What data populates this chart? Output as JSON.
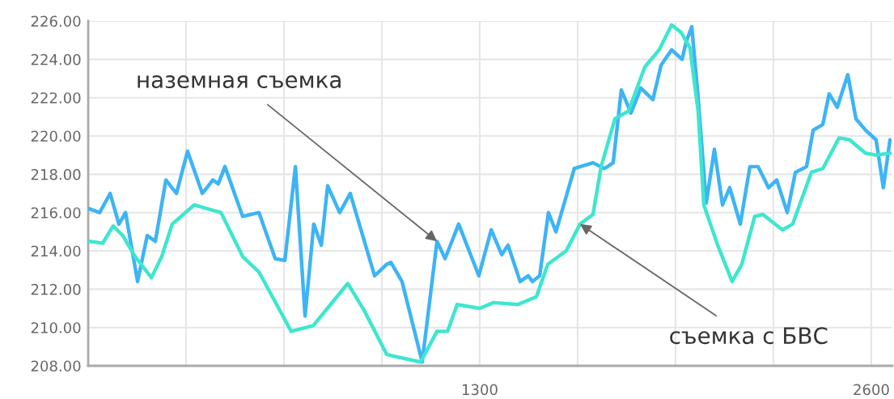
{
  "chart_data": {
    "type": "line",
    "xlim": [
      0,
      2670
    ],
    "ylim": [
      208,
      226
    ],
    "xticks": [
      {
        "value": 325,
        "label": null
      },
      {
        "value": 650,
        "label": null
      },
      {
        "value": 975,
        "label": null
      },
      1300,
      {
        "value": 1625,
        "label": null
      },
      {
        "value": 1950,
        "label": null
      },
      {
        "value": 2275,
        "label": null
      },
      2600
    ],
    "yticks": [
      {
        "value": 208,
        "label": "208.00"
      },
      {
        "value": 210,
        "label": "210.00"
      },
      {
        "value": 212,
        "label": "212.00"
      },
      {
        "value": 214,
        "label": "214.00"
      },
      {
        "value": 216,
        "label": "216.00"
      },
      {
        "value": 218,
        "label": "218.00"
      },
      {
        "value": 220,
        "label": "220.00"
      },
      {
        "value": 222,
        "label": "222.00"
      },
      {
        "value": 224,
        "label": "224.00"
      },
      {
        "value": 226,
        "label": "226.00"
      }
    ],
    "grid": true,
    "legend": false,
    "marker": "none",
    "line_style": "solid",
    "annotations": [
      {
        "text": "наземная съемка",
        "x": 1158,
        "y": 214.5
      },
      {
        "text": "съемка с БВС",
        "x": 1633,
        "y": 215.4
      }
    ],
    "series": [
      {
        "color": "#3db4f5",
        "x": [
          3,
          38,
          73,
          102,
          124,
          164,
          196,
          223,
          258,
          293,
          330,
          379,
          414,
          432,
          454,
          513,
          567,
          621,
          653,
          688,
          720,
          749,
          774,
          795,
          835,
          870,
          951,
          991,
          1005,
          1042,
          1109,
          1158,
          1185,
          1230,
          1297,
          1338,
          1373,
          1394,
          1434,
          1461,
          1475,
          1499,
          1528,
          1553,
          1614,
          1676,
          1714,
          1743,
          1770,
          1802,
          1835,
          1875,
          1902,
          1937,
          1972,
          1985,
          2004,
          2025,
          2052,
          2079,
          2106,
          2130,
          2165,
          2197,
          2224,
          2259,
          2286,
          2321,
          2348,
          2385,
          2407,
          2439,
          2460,
          2487,
          2522,
          2549,
          2581,
          2616,
          2640,
          2662
        ],
        "values": [
          216.2,
          216.0,
          217.0,
          215.4,
          216.0,
          212.4,
          214.8,
          214.5,
          217.7,
          217.0,
          219.2,
          217.0,
          217.7,
          217.5,
          218.4,
          215.8,
          216.0,
          213.6,
          213.5,
          218.4,
          210.6,
          215.4,
          214.3,
          217.4,
          216.0,
          217.0,
          212.7,
          213.3,
          213.4,
          212.4,
          208.2,
          214.5,
          213.6,
          215.4,
          212.7,
          215.1,
          213.8,
          214.3,
          212.4,
          212.7,
          212.4,
          212.7,
          216.0,
          215.0,
          218.3,
          218.6,
          218.3,
          218.6,
          222.4,
          221.2,
          222.5,
          221.9,
          223.7,
          224.5,
          224.0,
          224.9,
          225.7,
          222.0,
          216.5,
          219.3,
          216.4,
          217.3,
          215.4,
          218.4,
          218.4,
          217.3,
          217.7,
          216.0,
          218.1,
          218.4,
          220.3,
          220.6,
          222.2,
          221.5,
          223.2,
          220.9,
          220.3,
          219.8,
          217.3,
          219.8
        ]
      },
      {
        "color": "#3ee6cf",
        "x": [
          3,
          48,
          83,
          115,
          156,
          210,
          244,
          279,
          352,
          441,
          513,
          567,
          674,
          747,
          862,
          916,
          991,
          1015,
          1104,
          1158,
          1193,
          1225,
          1300,
          1346,
          1426,
          1488,
          1526,
          1587,
          1633,
          1676,
          1703,
          1749,
          1794,
          1848,
          1896,
          1937,
          1969,
          1998,
          2025,
          2044,
          2090,
          2138,
          2170,
          2213,
          2240,
          2305,
          2339,
          2401,
          2439,
          2493,
          2528,
          2581,
          2616,
          2662
        ],
        "values": [
          214.5,
          214.4,
          215.3,
          214.8,
          213.7,
          212.6,
          213.7,
          215.4,
          216.4,
          216.0,
          213.7,
          212.9,
          209.8,
          210.1,
          212.3,
          210.9,
          208.6,
          208.5,
          208.2,
          209.8,
          209.8,
          211.2,
          211.0,
          211.3,
          211.2,
          211.6,
          213.3,
          214.0,
          215.4,
          215.9,
          218.4,
          220.9,
          221.3,
          223.6,
          224.5,
          225.8,
          225.4,
          224.6,
          221.3,
          216.4,
          214.3,
          212.4,
          213.3,
          215.8,
          215.9,
          215.1,
          215.4,
          218.1,
          218.3,
          219.9,
          219.8,
          219.1,
          219.0,
          219.1
        ]
      }
    ]
  }
}
